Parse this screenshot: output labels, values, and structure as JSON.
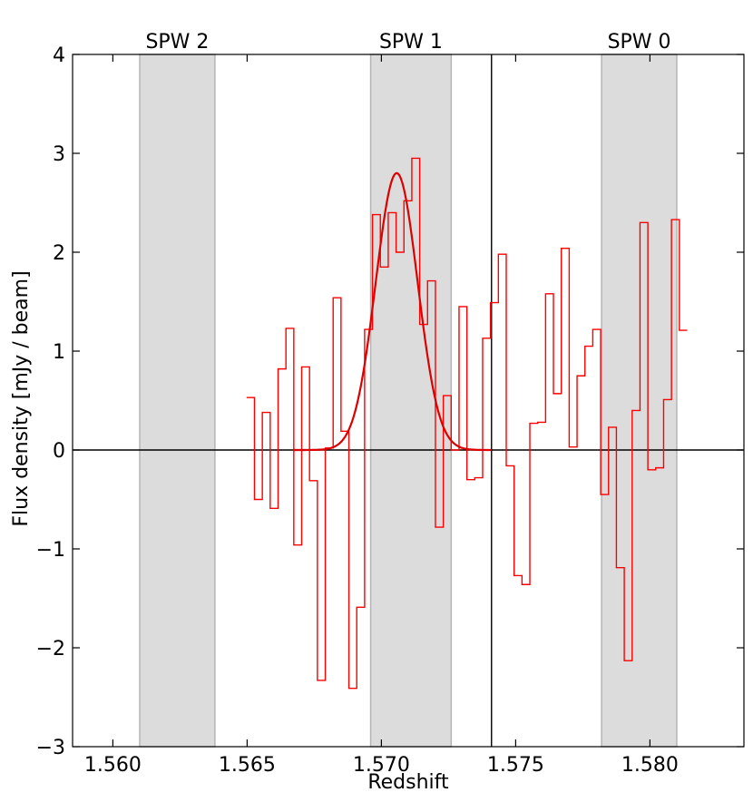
{
  "chart_data": {
    "type": "line",
    "xlabel": "Redshift",
    "ylabel": "Flux density [mJy / beam]",
    "xlim": [
      1.5585,
      1.5835
    ],
    "ylim": [
      -3,
      4
    ],
    "x_ticks": [
      1.56,
      1.565,
      1.57,
      1.575,
      1.58
    ],
    "x_tick_labels": [
      "1.560",
      "1.565",
      "1.570",
      "1.575",
      "1.580"
    ],
    "y_ticks": [
      -3,
      -2,
      -1,
      0,
      1,
      2,
      3,
      4
    ],
    "y_tick_labels": [
      "−3",
      "−2",
      "−1",
      "0",
      "1",
      "2",
      "3",
      "4"
    ],
    "spw_bands": [
      {
        "label": "SPW 2",
        "x0": 1.561,
        "x1": 1.5638
      },
      {
        "label": "SPW 1",
        "x0": 1.5696,
        "x1": 1.5726
      },
      {
        "label": "SPW 0",
        "x0": 1.5782,
        "x1": 1.581
      }
    ],
    "reference_line_x": 1.5741,
    "zero_line_y": 0,
    "colors": {
      "spectrum": "#ff0000",
      "fit": "#dd0000",
      "band_fill": "#dcdcdc",
      "band_edge": "#b5b5b5",
      "axes": "#000000"
    },
    "series": [
      {
        "kind": "step",
        "step_width": 0.000293,
        "x_start": 1.56498,
        "values": [
          0.53,
          -0.5,
          0.38,
          -0.59,
          0.82,
          1.23,
          -0.96,
          0.84,
          -0.31,
          -2.33,
          0.02,
          1.54,
          0.19,
          -2.41,
          -1.59,
          1.22,
          2.38,
          1.85,
          2.4,
          2.0,
          2.52,
          2.95,
          1.27,
          1.71,
          -0.78,
          0.55,
          0.0,
          1.45,
          -0.3,
          -0.28,
          1.13,
          1.49,
          1.98,
          -0.16,
          -1.27,
          -1.36,
          0.27,
          0.28,
          1.58,
          0.57,
          2.04,
          0.03,
          0.75,
          1.05,
          1.22,
          -0.45,
          0.23,
          -1.19,
          -2.13,
          0.4,
          2.3,
          -0.2,
          -0.18,
          0.51,
          2.33,
          1.21
        ]
      },
      {
        "kind": "gaussian",
        "amplitude": 2.8,
        "center": 1.57057,
        "sigma": 0.00078,
        "x_range": [
          1.5667,
          1.5741
        ]
      }
    ]
  }
}
